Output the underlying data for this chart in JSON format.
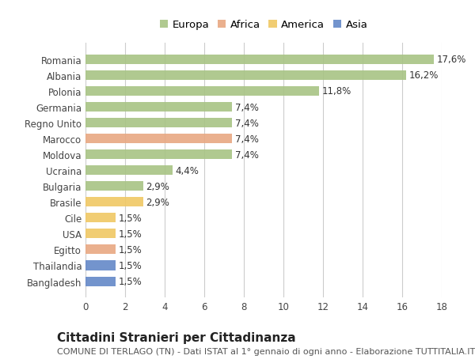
{
  "countries": [
    "Romania",
    "Albania",
    "Polonia",
    "Germania",
    "Regno Unito",
    "Marocco",
    "Moldova",
    "Ucraina",
    "Bulgaria",
    "Brasile",
    "Cile",
    "USA",
    "Egitto",
    "Thailandia",
    "Bangladesh"
  ],
  "values": [
    17.6,
    16.2,
    11.8,
    7.4,
    7.4,
    7.4,
    7.4,
    4.4,
    2.9,
    2.9,
    1.5,
    1.5,
    1.5,
    1.5,
    1.5
  ],
  "labels": [
    "17,6%",
    "16,2%",
    "11,8%",
    "7,4%",
    "7,4%",
    "7,4%",
    "7,4%",
    "4,4%",
    "2,9%",
    "2,9%",
    "1,5%",
    "1,5%",
    "1,5%",
    "1,5%",
    "1,5%"
  ],
  "continents": [
    "Europa",
    "Europa",
    "Europa",
    "Europa",
    "Europa",
    "Africa",
    "Europa",
    "Europa",
    "Europa",
    "America",
    "America",
    "America",
    "Africa",
    "Asia",
    "Asia"
  ],
  "colors": {
    "Europa": "#a8c484",
    "Africa": "#e8a882",
    "America": "#f0c864",
    "Asia": "#6488c8"
  },
  "xlim": [
    0,
    18
  ],
  "xticks": [
    0,
    2,
    4,
    6,
    8,
    10,
    12,
    14,
    16,
    18
  ],
  "title": "Cittadini Stranieri per Cittadinanza",
  "subtitle": "COMUNE DI TERLAGO (TN) - Dati ISTAT al 1° gennaio di ogni anno - Elaborazione TUTTITALIA.IT",
  "background_color": "#ffffff",
  "grid_color": "#cccccc",
  "bar_height": 0.6,
  "label_fontsize": 8.5,
  "title_fontsize": 11,
  "subtitle_fontsize": 8
}
